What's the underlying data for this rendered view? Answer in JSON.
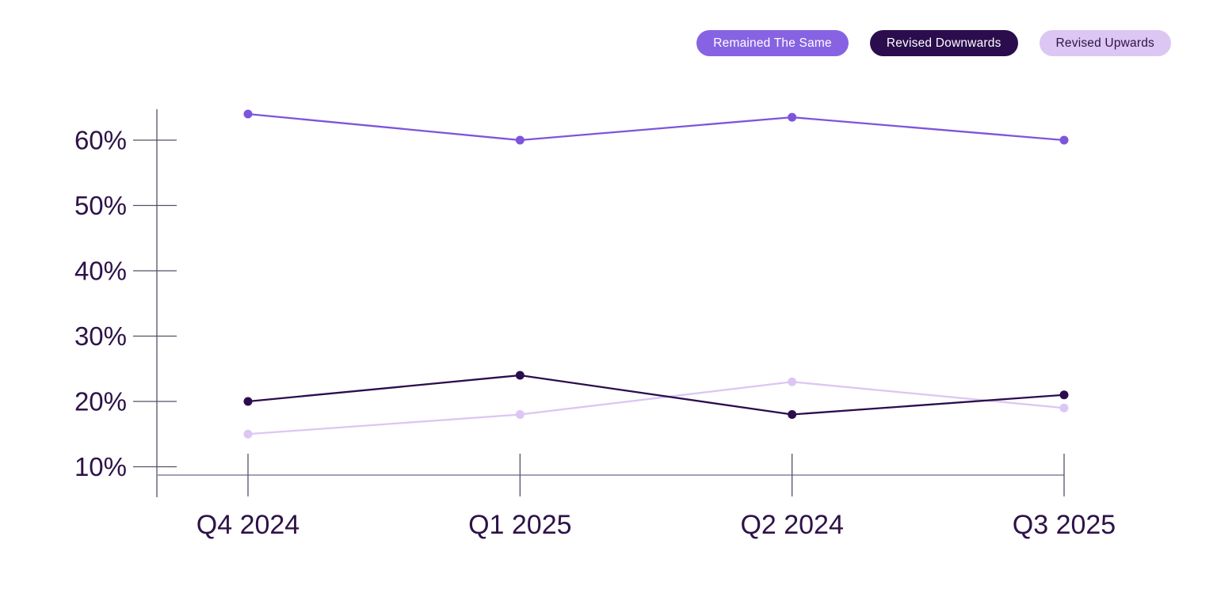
{
  "legend": {
    "items": [
      {
        "label": "Remained The Same",
        "bg": "#8763E3",
        "text_color": "#FFFFFF"
      },
      {
        "label": "Revised Downwards",
        "bg": "#2B0D4D",
        "text_color": "#FFFFFF"
      },
      {
        "label": "Revised Upwards",
        "bg": "#DCC6F3",
        "text_color": "#2E1248"
      }
    ]
  },
  "chart_data": {
    "type": "line",
    "title": "",
    "xlabel": "",
    "ylabel": "",
    "categories": [
      "Q4 2024",
      "Q1 2025",
      "Q2 2024",
      "Q3 2025"
    ],
    "series": [
      {
        "name": "Remained The Same",
        "values": [
          64,
          60,
          63.5,
          60
        ],
        "color": "#7C55DC"
      },
      {
        "name": "Revised Downwards",
        "values": [
          20,
          24,
          18,
          21
        ],
        "color": "#2B0D4D"
      },
      {
        "name": "Revised Upwards",
        "values": [
          15,
          18,
          23,
          19
        ],
        "color": "#DCC6F3"
      }
    ],
    "y_ticks": [
      60,
      50,
      40,
      30,
      20,
      10
    ],
    "y_tick_labels": [
      "60%",
      "50%",
      "40%",
      "30%",
      "20%",
      "10%"
    ],
    "ylim": [
      10,
      66
    ],
    "grid": false,
    "legend_position": "top-right",
    "axis_color": "#565066",
    "baseline_color": "#8A7F9E",
    "label_color": "#2E1248"
  }
}
